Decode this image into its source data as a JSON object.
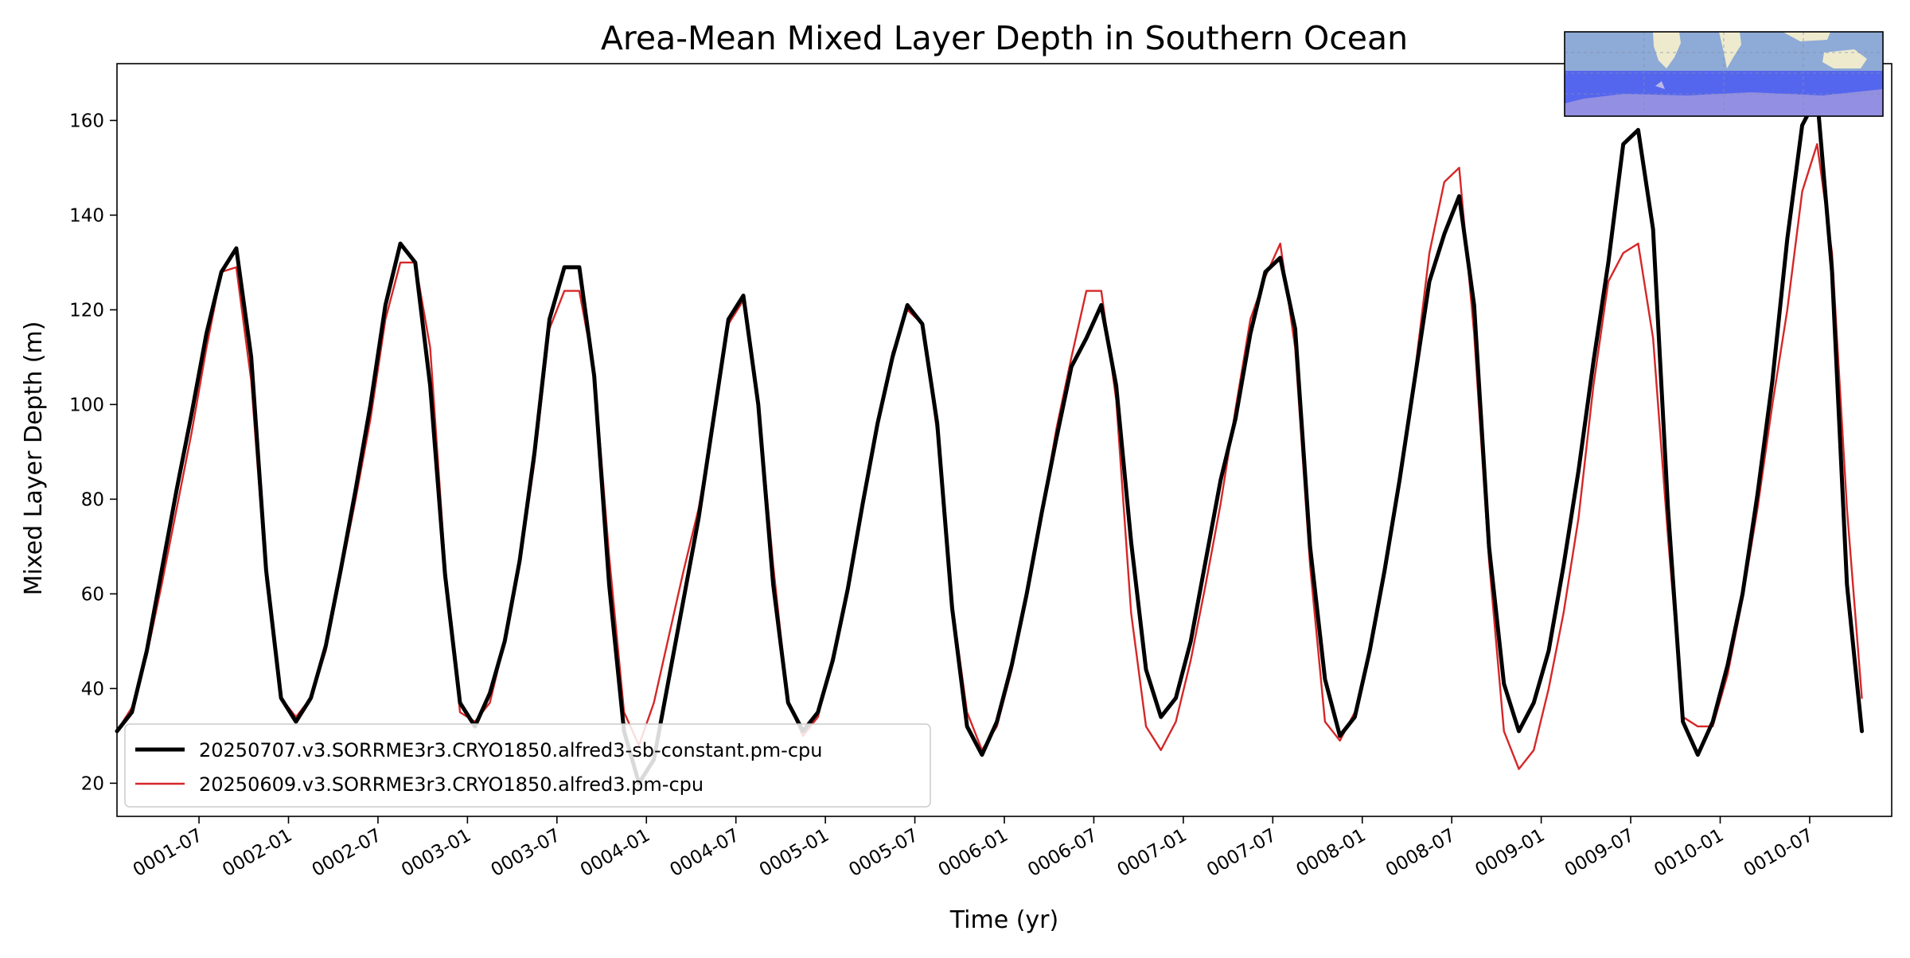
{
  "chart_data": {
    "type": "line",
    "title": "Area-Mean Mixed Layer Depth in Southern Ocean",
    "xlabel": "Time (yr)",
    "ylabel": "Mixed Layer Depth (m)",
    "x_unit": "month_index",
    "xlim": [
      0.0,
      119.0
    ],
    "ylim": [
      13.0,
      172.0
    ],
    "yticks": [
      20,
      40,
      60,
      80,
      100,
      120,
      140,
      160
    ],
    "xticks": [
      {
        "label": "0001-07",
        "pos": 5.5
      },
      {
        "label": "0002-01",
        "pos": 11.5
      },
      {
        "label": "0002-07",
        "pos": 17.5
      },
      {
        "label": "0003-01",
        "pos": 23.5
      },
      {
        "label": "0003-07",
        "pos": 29.5
      },
      {
        "label": "0004-01",
        "pos": 35.5
      },
      {
        "label": "0004-07",
        "pos": 41.5
      },
      {
        "label": "0005-01",
        "pos": 47.5
      },
      {
        "label": "0005-07",
        "pos": 53.5
      },
      {
        "label": "0006-01",
        "pos": 59.5
      },
      {
        "label": "0006-07",
        "pos": 65.5
      },
      {
        "label": "0007-01",
        "pos": 71.5
      },
      {
        "label": "0007-07",
        "pos": 77.5
      },
      {
        "label": "0008-01",
        "pos": 83.5
      },
      {
        "label": "0008-07",
        "pos": 89.5
      },
      {
        "label": "0009-01",
        "pos": 95.5
      },
      {
        "label": "0009-07",
        "pos": 101.5
      },
      {
        "label": "0010-01",
        "pos": 107.5
      },
      {
        "label": "0010-07",
        "pos": 113.5
      }
    ],
    "grid": false,
    "legend_position": "lower-left",
    "series": [
      {
        "name": "20250707.v3.SORRME3r3.CRYO1850.alfred3-sb-constant.pm-cpu",
        "color": "#000000",
        "values": [
          31,
          35,
          48,
          65,
          82,
          98,
          115,
          128,
          133,
          110,
          65,
          38,
          33,
          38,
          49,
          65,
          82,
          100,
          121,
          134,
          130,
          104,
          64,
          37,
          32,
          39,
          50,
          67,
          90,
          118,
          129,
          129,
          106,
          62,
          31,
          20,
          25,
          42,
          59,
          76,
          97,
          118,
          123,
          100,
          62,
          37,
          31,
          35,
          46,
          61,
          79,
          96,
          110,
          121,
          117,
          96,
          57,
          32,
          26,
          33,
          45,
          60,
          77,
          93,
          108,
          114,
          121,
          104,
          71,
          44,
          34,
          38,
          50,
          67,
          84,
          97,
          115,
          128,
          131,
          116,
          70,
          42,
          30,
          34,
          48,
          65,
          84,
          105,
          126,
          136,
          144,
          121,
          70,
          41,
          31,
          37,
          48,
          66,
          86,
          109,
          130,
          155,
          158,
          137,
          78,
          33,
          26,
          33,
          45,
          60,
          81,
          105,
          135,
          159,
          165,
          128,
          62,
          31
        ]
      },
      {
        "name": "20250609.v3.SORRME3r3.CRYO1850.alfred3.pm-cpu",
        "color": "#d62728",
        "values": [
          31,
          36,
          47,
          62,
          78,
          94,
          112,
          128,
          129,
          105,
          63,
          38,
          34,
          38,
          48,
          64,
          80,
          97,
          118,
          130,
          130,
          112,
          66,
          35,
          33,
          37,
          50,
          66,
          88,
          116,
          124,
          124,
          107,
          68,
          35,
          28,
          37,
          51,
          65,
          78,
          96,
          117,
          122,
          101,
          66,
          37,
          30,
          34,
          47,
          61,
          80,
          96,
          111,
          120,
          117,
          94,
          58,
          35,
          27,
          32,
          44,
          59,
          77,
          95,
          110,
          124,
          124,
          101,
          56,
          32,
          27,
          33,
          46,
          62,
          79,
          99,
          118,
          127,
          134,
          112,
          66,
          33,
          29,
          35,
          48,
          65,
          84,
          106,
          132,
          147,
          150,
          115,
          67,
          31,
          23,
          27,
          40,
          56,
          76,
          104,
          126,
          132,
          134,
          114,
          72,
          34,
          32,
          32,
          43,
          59,
          78,
          100,
          120,
          145,
          155,
          132,
          78,
          38
        ]
      }
    ]
  }
}
